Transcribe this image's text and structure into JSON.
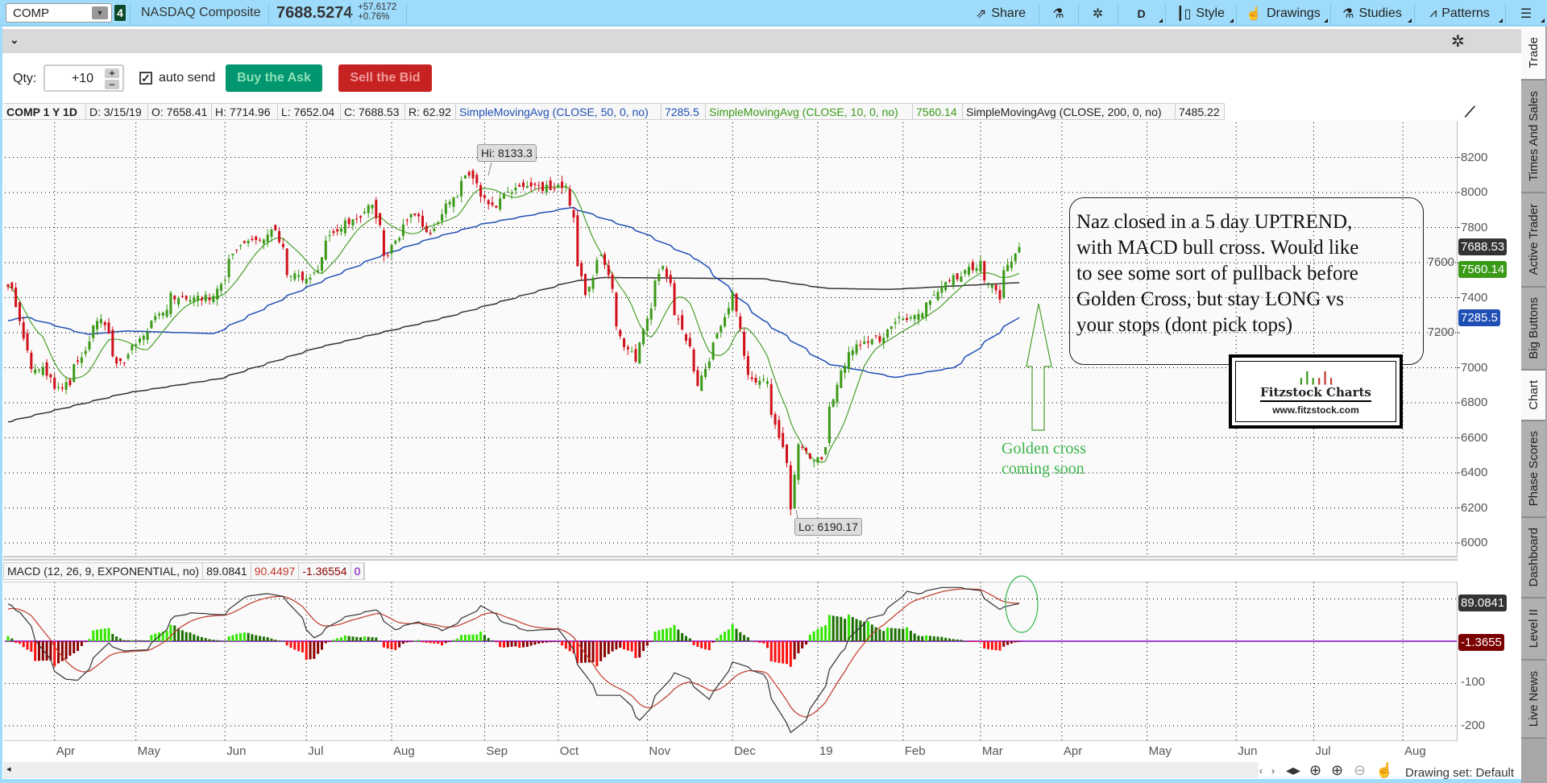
{
  "toolbar": {
    "symbol": "COMP",
    "link_badge": "4",
    "name": "NASDAQ Composite",
    "last": "7688.5274",
    "change": "+57.6172",
    "change_pct": "+0.76%",
    "share": "Share",
    "aggregation": "D",
    "style": "Style",
    "drawings": "Drawings",
    "studies": "Studies",
    "patterns": "Patterns"
  },
  "trade_bar": {
    "qty_label": "Qty:",
    "qty_value": "+10",
    "auto_send_label": "auto send",
    "auto_send_checked": true,
    "buy_label": "Buy the Ask",
    "sell_label": "Sell the Bid",
    "buy_color": "#009670",
    "sell_color": "#c62222"
  },
  "legend": {
    "title": "COMP 1 Y 1D",
    "date": "D: 3/15/19",
    "open": "O: 7658.41",
    "high": "H: 7714.96",
    "low": "L: 7652.04",
    "close": "C: 7688.53",
    "range": "R: 62.92",
    "sma50_label": "SimpleMovingAvg (CLOSE, 50, 0, no)",
    "sma50_value": "7285.5",
    "sma10_label": "SimpleMovingAvg (CLOSE, 10, 0, no)",
    "sma10_value": "7560.14",
    "sma200_label": "SimpleMovingAvg (CLOSE, 200, 0, no)",
    "sma200_value": "7485.22"
  },
  "price_axis": {
    "ticks": [
      "8200",
      "8000",
      "7800",
      "7600",
      "7400",
      "7200",
      "7000",
      "6800",
      "6600",
      "6400",
      "6200",
      "6000"
    ],
    "tag_close": "7688.53",
    "tag_sma10": "7560.14",
    "tag_sma50": "7285.5",
    "hi_label": "Hi: 8133.3",
    "lo_label": "Lo: 6190.17"
  },
  "annotations": {
    "note_lines": [
      "Naz closed in a 5 day UPTREND,",
      "with MACD bull cross.  Would like",
      "to see some sort of pullback before",
      "Golden Cross, but stay LONG  vs",
      "your stops (dont pick tops)"
    ],
    "logo_title": "Fitzstock Charts",
    "logo_url": "www.fitzstock.com",
    "golden_cross_lines": [
      "Golden cross",
      "coming soon"
    ],
    "annotation_color": "#3cb44b"
  },
  "macd": {
    "label": "MACD (12, 26, 9, EXPONENTIAL, no)",
    "value": "89.0841",
    "avg": "90.4497",
    "diff": "-1.36554",
    "zero": "0",
    "axis_ticks": [
      "-100",
      "-200"
    ],
    "tag_value": "89.0841",
    "tag_diff": "-1.3655"
  },
  "x_axis": {
    "ticks": [
      {
        "label": "Apr",
        "date": "2018-04-02"
      },
      {
        "label": "May",
        "date": "2018-05-01"
      },
      {
        "label": "Jun",
        "date": "2018-06-01"
      },
      {
        "label": "Jul",
        "date": "2018-07-02"
      },
      {
        "label": "Aug",
        "date": "2018-08-01"
      },
      {
        "label": "Sep",
        "date": "2018-09-04"
      },
      {
        "label": "Oct",
        "date": "2018-10-01"
      },
      {
        "label": "Nov",
        "date": "2018-11-01"
      },
      {
        "label": "Dec",
        "date": "2018-12-03"
      },
      {
        "label": "19",
        "date": "2019-01-02"
      },
      {
        "label": "Feb",
        "date": "2019-02-01"
      },
      {
        "label": "Mar",
        "date": "2019-03-01"
      },
      {
        "label": "Apr",
        "date": "2019-04-01"
      },
      {
        "label": "May",
        "date": "2019-05-01"
      },
      {
        "label": "Jun",
        "date": "2019-06-03"
      },
      {
        "label": "Jul",
        "date": "2019-07-01"
      },
      {
        "label": "Aug",
        "date": "2019-08-01"
      }
    ]
  },
  "footer": {
    "drawing_set": "Drawing set: Default"
  },
  "side_tabs": [
    "Trade",
    "Times And Sales",
    "Active Trader",
    "Big Buttons",
    "Chart",
    "Phase Scores",
    "Dashboard",
    "Level II",
    "Live News"
  ],
  "active_tab": "Chart",
  "colors": {
    "up": "#3a9a18",
    "down": "#d0101a",
    "sma10": "#4aa02c",
    "sma50": "#1f4fb4",
    "sma200": "#333333",
    "macd": "#333333",
    "signal": "#c0392b",
    "zero_line": "#8000c0",
    "topbar": "#9fdcfb"
  },
  "chart_data": {
    "type": "candlestick",
    "start": "2018-03-15",
    "end": "2019-03-15",
    "ylim": [
      5900,
      8330
    ],
    "close_path": [
      [
        "2018-03-15",
        7481
      ],
      [
        "2018-03-19",
        7344
      ],
      [
        "2018-03-23",
        6993
      ],
      [
        "2018-03-27",
        7008
      ],
      [
        "2018-04-02",
        6870
      ],
      [
        "2018-04-06",
        6915
      ],
      [
        "2018-04-11",
        7069
      ],
      [
        "2018-04-18",
        7295
      ],
      [
        "2018-04-24",
        7008
      ],
      [
        "2018-05-01",
        7130
      ],
      [
        "2018-05-04",
        7209
      ],
      [
        "2018-05-14",
        7411
      ],
      [
        "2018-05-29",
        7396
      ],
      [
        "2018-06-06",
        7689
      ],
      [
        "2018-06-20",
        7781
      ],
      [
        "2018-06-25",
        7532
      ],
      [
        "2018-07-03",
        7502
      ],
      [
        "2018-07-10",
        7756
      ],
      [
        "2018-07-25",
        7932
      ],
      [
        "2018-07-30",
        7630
      ],
      [
        "2018-08-08",
        7888
      ],
      [
        "2018-08-15",
        7774
      ],
      [
        "2018-08-29",
        8109
      ],
      [
        "2018-09-07",
        7902
      ],
      [
        "2018-09-13",
        8013
      ],
      [
        "2018-09-20",
        8028
      ],
      [
        "2018-10-03",
        8025
      ],
      [
        "2018-10-10",
        7422
      ],
      [
        "2018-10-16",
        7645
      ],
      [
        "2018-10-24",
        7108
      ],
      [
        "2018-10-29",
        7050
      ],
      [
        "2018-11-02",
        7357
      ],
      [
        "2018-11-07",
        7570
      ],
      [
        "2018-11-20",
        6909
      ],
      [
        "2018-11-30",
        7330
      ],
      [
        "2018-12-03",
        7442
      ],
      [
        "2018-12-07",
        6969
      ],
      [
        "2018-12-14",
        6911
      ],
      [
        "2018-12-20",
        6528
      ],
      [
        "2018-12-24",
        6193
      ],
      [
        "2018-12-26",
        6554
      ],
      [
        "2019-01-03",
        6463
      ],
      [
        "2019-01-10",
        6986
      ],
      [
        "2019-01-18",
        7157
      ],
      [
        "2019-01-25",
        7164
      ],
      [
        "2019-01-31",
        7282
      ],
      [
        "2019-02-08",
        7298
      ],
      [
        "2019-02-15",
        7472
      ],
      [
        "2019-02-25",
        7554
      ],
      [
        "2019-03-01",
        7595
      ],
      [
        "2019-03-08",
        7408
      ],
      [
        "2019-03-11",
        7558
      ],
      [
        "2019-03-15",
        7688.53
      ]
    ],
    "sma50": [
      [
        "2018-03-15",
        7269
      ],
      [
        "2018-03-22",
        7288
      ],
      [
        "2018-04-13",
        7190
      ],
      [
        "2018-04-27",
        7210
      ],
      [
        "2018-05-29",
        7195
      ],
      [
        "2018-06-26",
        7420
      ],
      [
        "2018-07-28",
        7640
      ],
      [
        "2018-08-15",
        7735
      ],
      [
        "2018-09-03",
        7820
      ],
      [
        "2018-10-05",
        7915
      ],
      [
        "2018-10-28",
        7790
      ],
      [
        "2018-11-20",
        7615
      ],
      [
        "2018-12-13",
        7270
      ],
      [
        "2019-01-05",
        7025
      ],
      [
        "2019-01-30",
        6945
      ],
      [
        "2019-02-20",
        7000
      ],
      [
        "2019-03-15",
        7285.5
      ]
    ],
    "sma200": [
      [
        "2018-03-15",
        6690
      ],
      [
        "2018-04-27",
        6855
      ],
      [
        "2018-05-31",
        6938
      ],
      [
        "2018-07-05",
        7113
      ],
      [
        "2018-08-20",
        7285
      ],
      [
        "2018-10-05",
        7491
      ],
      [
        "2018-10-17",
        7515
      ],
      [
        "2018-12-13",
        7508
      ],
      [
        "2019-01-05",
        7453
      ],
      [
        "2019-01-28",
        7447
      ],
      [
        "2019-03-15",
        7485.22
      ]
    ],
    "macd_line": [
      [
        "2018-03-15",
        88
      ],
      [
        "2018-03-20",
        69
      ],
      [
        "2018-04-01",
        -65
      ],
      [
        "2018-04-05",
        -90
      ],
      [
        "2018-04-10",
        -92
      ],
      [
        "2018-04-20",
        -4
      ],
      [
        "2018-04-26",
        -23
      ],
      [
        "2018-05-05",
        -20
      ],
      [
        "2018-05-15",
        59
      ],
      [
        "2018-05-21",
        67
      ],
      [
        "2018-06-02",
        62
      ],
      [
        "2018-06-08",
        103
      ],
      [
        "2018-06-17",
        114
      ],
      [
        "2018-06-24",
        103
      ],
      [
        "2018-07-04",
        8
      ],
      [
        "2018-07-14",
        55
      ],
      [
        "2018-07-26",
        74
      ],
      [
        "2018-08-02",
        27
      ],
      [
        "2018-08-10",
        46
      ],
      [
        "2018-08-20",
        25
      ],
      [
        "2018-09-03",
        84
      ],
      [
        "2018-09-11",
        44
      ],
      [
        "2018-09-19",
        25
      ],
      [
        "2018-10-01",
        29
      ],
      [
        "2018-10-14",
        -128
      ],
      [
        "2018-10-23",
        -128
      ],
      [
        "2018-10-30",
        -187
      ],
      [
        "2018-11-11",
        -71
      ],
      [
        "2018-11-17",
        -93
      ],
      [
        "2018-11-24",
        -145
      ],
      [
        "2018-12-02",
        -46
      ],
      [
        "2018-12-13",
        -78
      ],
      [
        "2018-12-23",
        -223
      ],
      [
        "2018-12-30",
        -173
      ],
      [
        "2019-01-10",
        -27
      ],
      [
        "2019-01-19",
        50
      ],
      [
        "2019-01-26",
        65
      ],
      [
        "2019-02-03",
        120
      ],
      [
        "2019-02-07",
        112
      ],
      [
        "2019-02-15",
        127
      ],
      [
        "2019-02-22",
        127
      ],
      [
        "2019-03-01",
        120
      ],
      [
        "2019-03-08",
        75
      ],
      [
        "2019-03-15",
        89.08
      ]
    ],
    "macd_ylim": [
      -235,
      145
    ]
  }
}
